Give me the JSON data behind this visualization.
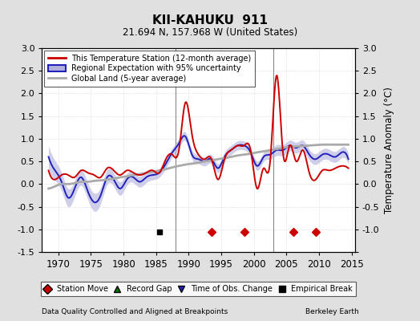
{
  "title": "KII-KAHUKU  911",
  "subtitle": "21.694 N, 157.968 W (United States)",
  "ylabel": "Temperature Anomaly (°C)",
  "xlabel_left": "Data Quality Controlled and Aligned at Breakpoints",
  "xlabel_right": "Berkeley Earth",
  "ylim": [
    -1.5,
    3.0
  ],
  "xlim": [
    1967.5,
    2015.5
  ],
  "yticks": [
    -1.5,
    -1.0,
    -0.5,
    0.0,
    0.5,
    1.0,
    1.5,
    2.0,
    2.5,
    3.0
  ],
  "xticks": [
    1970,
    1975,
    1980,
    1985,
    1990,
    1995,
    2000,
    2005,
    2010,
    2015
  ],
  "vlines": [
    1988.0,
    2003.0
  ],
  "station_move_years": [
    1993.5,
    1998.5,
    2006.0,
    2009.5
  ],
  "empirical_break_years": [
    1985.5
  ],
  "background_color": "#e0e0e0",
  "plot_bg_color": "#ffffff",
  "red_line_color": "#cc0000",
  "blue_line_color": "#2222bb",
  "blue_fill_color": "#b0b0dd",
  "gray_line_color": "#aaaaaa",
  "vline_color": "#888888",
  "grid_color": "#cccccc",
  "red_years": [
    1968,
    1969,
    1970,
    1971,
    1972,
    1973,
    1974,
    1975,
    1976,
    1977,
    1978,
    1979,
    1980,
    1981,
    1982,
    1983,
    1984,
    1985,
    1986,
    1987,
    1988,
    1989,
    1990,
    1991,
    1992,
    1993,
    1994,
    1995,
    1996,
    1997,
    1998,
    1999,
    2000,
    2001,
    2002,
    2003,
    2004,
    2005,
    2006,
    2007,
    2008,
    2009,
    2010,
    2011,
    2012,
    2013,
    2014
  ],
  "red_vals": [
    0.3,
    0.1,
    0.2,
    0.2,
    0.15,
    0.3,
    0.25,
    0.2,
    0.15,
    0.35,
    0.3,
    0.2,
    0.3,
    0.25,
    0.2,
    0.25,
    0.3,
    0.25,
    0.55,
    0.65,
    0.75,
    1.8,
    1.1,
    0.65,
    0.55,
    0.55,
    0.1,
    0.55,
    0.75,
    0.85,
    0.85,
    0.75,
    -0.1,
    0.35,
    0.5,
    2.4,
    0.65,
    0.85,
    0.5,
    0.75,
    0.25,
    0.1,
    0.3,
    0.3,
    0.35,
    0.4,
    0.35
  ],
  "blue_years": [
    1968,
    1969,
    1970,
    1971,
    1972,
    1973,
    1974,
    1975,
    1976,
    1977,
    1978,
    1979,
    1980,
    1981,
    1982,
    1983,
    1984,
    1985,
    1986,
    1987,
    1988,
    1989,
    1990,
    1991,
    1992,
    1993,
    1994,
    1995,
    1996,
    1997,
    1998,
    1999,
    2000,
    2001,
    2002,
    2003,
    2004,
    2005,
    2006,
    2007,
    2008,
    2009,
    2010,
    2011,
    2012,
    2013,
    2014
  ],
  "blue_vals": [
    0.6,
    0.3,
    0.05,
    -0.3,
    -0.1,
    0.15,
    -0.15,
    -0.4,
    -0.25,
    0.15,
    0.1,
    -0.1,
    0.1,
    0.15,
    0.05,
    0.15,
    0.2,
    0.25,
    0.45,
    0.7,
    0.9,
    1.05,
    0.65,
    0.55,
    0.5,
    0.55,
    0.35,
    0.6,
    0.75,
    0.85,
    0.85,
    0.7,
    0.4,
    0.6,
    0.65,
    0.75,
    0.75,
    0.85,
    0.8,
    0.85,
    0.65,
    0.55,
    0.65,
    0.65,
    0.6,
    0.7,
    0.55
  ],
  "blue_unc": [
    0.25,
    0.22,
    0.2,
    0.2,
    0.18,
    0.18,
    0.18,
    0.2,
    0.18,
    0.16,
    0.15,
    0.15,
    0.13,
    0.12,
    0.12,
    0.12,
    0.11,
    0.1,
    0.1,
    0.1,
    0.1,
    0.1,
    0.1,
    0.1,
    0.1,
    0.1,
    0.1,
    0.1,
    0.1,
    0.1,
    0.1,
    0.1,
    0.1,
    0.1,
    0.1,
    0.12,
    0.12,
    0.12,
    0.12,
    0.12,
    0.12,
    0.12,
    0.12,
    0.12,
    0.12,
    0.12,
    0.12
  ],
  "gray_years": [
    1968,
    1969,
    1970,
    1971,
    1972,
    1973,
    1974,
    1975,
    1976,
    1977,
    1978,
    1979,
    1980,
    1981,
    1982,
    1983,
    1984,
    1985,
    1986,
    1987,
    1988,
    1989,
    1990,
    1991,
    1992,
    1993,
    1994,
    1995,
    1996,
    1997,
    1998,
    1999,
    2000,
    2001,
    2002,
    2003,
    2004,
    2005,
    2006,
    2007,
    2008,
    2009,
    2010,
    2011,
    2012,
    2013,
    2014
  ],
  "gray_vals": [
    -0.1,
    -0.05,
    0.0,
    0.0,
    0.02,
    0.05,
    0.05,
    0.07,
    0.08,
    0.1,
    0.12,
    0.15,
    0.17,
    0.2,
    0.22,
    0.25,
    0.27,
    0.3,
    0.33,
    0.37,
    0.4,
    0.43,
    0.45,
    0.47,
    0.5,
    0.52,
    0.55,
    0.57,
    0.6,
    0.63,
    0.65,
    0.67,
    0.7,
    0.72,
    0.75,
    0.77,
    0.8,
    0.82,
    0.83,
    0.84,
    0.85,
    0.86,
    0.87,
    0.87,
    0.87,
    0.87,
    0.87
  ]
}
